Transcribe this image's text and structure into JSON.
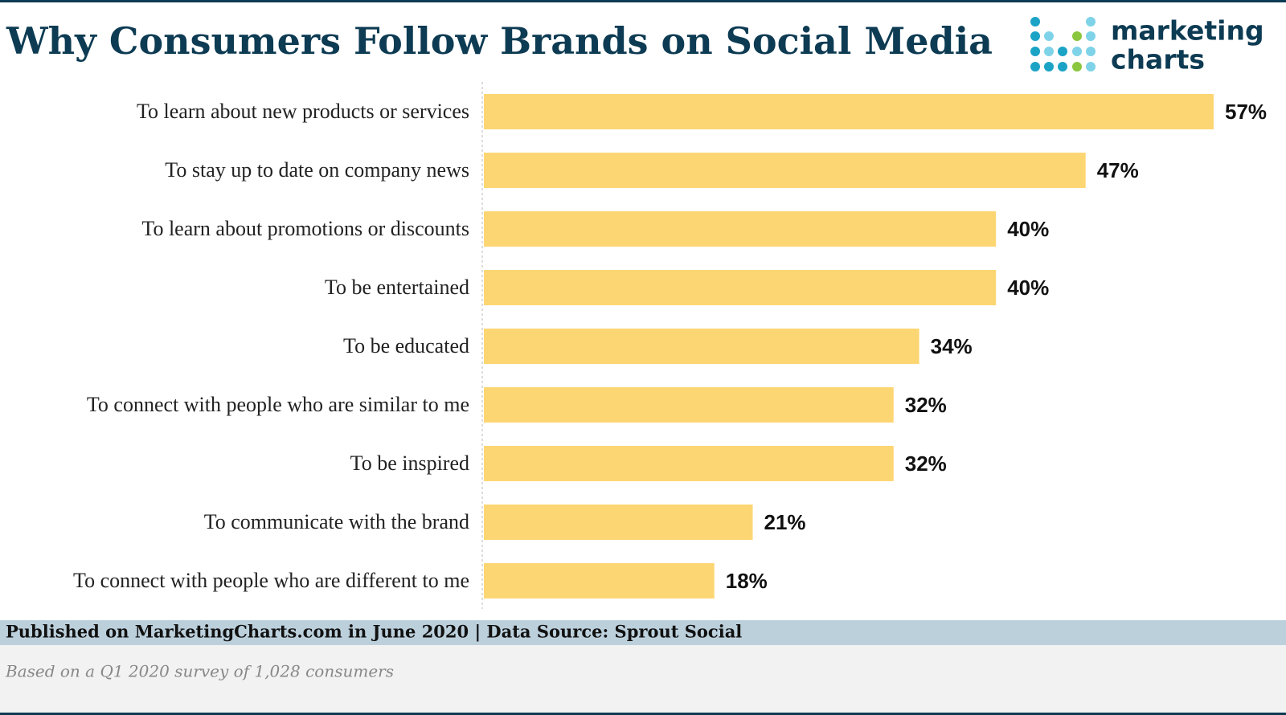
{
  "chart_data": {
    "type": "bar",
    "orientation": "horizontal",
    "title": "Why Consumers Follow Brands on Social Media",
    "logo": [
      "marketing",
      "charts"
    ],
    "categories": [
      "To learn about new products or services",
      "To stay up to date on company news",
      "To learn about promotions or discounts",
      "To be entertained",
      "To be educated",
      "To connect with people who are similar to me",
      "To be inspired",
      "To communicate with the brand",
      "To connect with people who are different to me"
    ],
    "values": [
      57,
      47,
      40,
      40,
      34,
      32,
      32,
      21,
      18
    ],
    "value_labels": [
      "57%",
      "47%",
      "40%",
      "40%",
      "34%",
      "32%",
      "32%",
      "21%",
      "18%"
    ],
    "color": "#fdd674",
    "source": "Published on MarketingCharts.com in June 2020 | Data Source: Sprout Social",
    "note": "Based on a Q1 2020 survey of 1,028 consumers"
  }
}
